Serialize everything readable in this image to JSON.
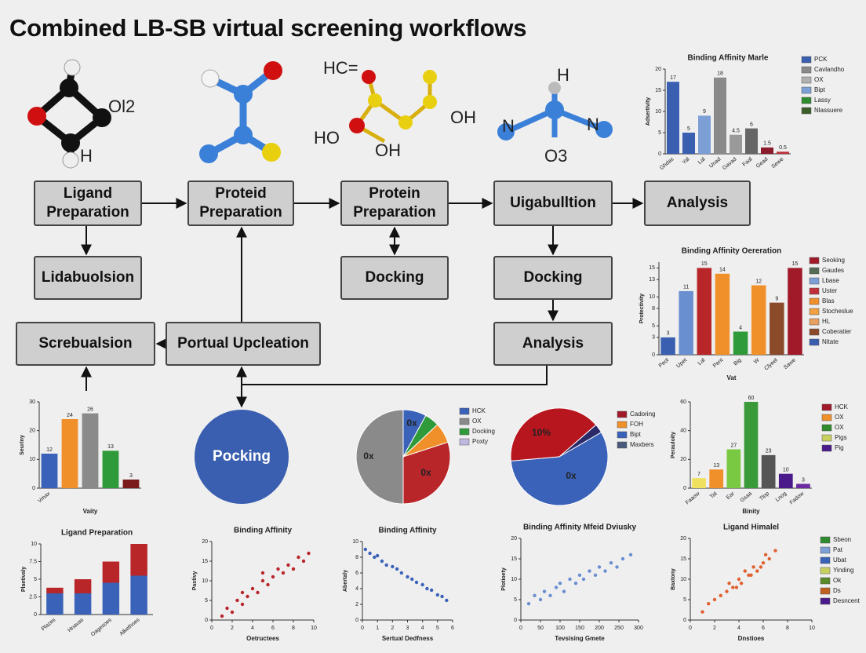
{
  "title": "Combined LB-SB virtual screening workflows",
  "nodes": [
    "Ligand Preparation",
    "Proteid Preparation",
    "Protein Preparation",
    "Uigabulltion",
    "Analysis",
    "Lidabuolsion",
    "Docking",
    "Docking",
    "Screbualsion",
    "Portual Upcleation",
    "Analysis",
    "Pocking"
  ],
  "atom_labels": [
    "Ol2",
    "H",
    "HC=",
    "HO",
    "OH",
    "OH",
    "H",
    "N",
    "N",
    "O3"
  ],
  "charts": [
    {
      "type": "bar",
      "title": "Binding Affinity Marle",
      "ylabel": "Adsertivity",
      "categories": [
        "Ghdas",
        "Yal",
        "Lal",
        "Unad",
        "Gavad",
        "Faal",
        "Gead",
        "Sewe"
      ],
      "values": [
        17,
        5,
        9,
        18,
        4.5,
        6,
        1.5,
        0.5
      ],
      "colors": [
        "#3a5fb0",
        "#3a5fb0",
        "#7c9fd6",
        "#8a8a8a",
        "#9a9a9a",
        "#666666",
        "#8b1a2a",
        "#c0303a"
      ],
      "show_values": true,
      "ylim": [
        0,
        20
      ],
      "yticks": [
        0,
        5,
        10,
        15,
        20
      ],
      "legend": [
        {
          "name": "PCK",
          "color": "#3a5fb0"
        },
        {
          "name": "Cavlandho",
          "color": "#8a8a8a"
        },
        {
          "name": "OX",
          "color": "#b0b0b0"
        },
        {
          "name": "Bipt",
          "color": "#7c9fd6"
        },
        {
          "name": "Lassy",
          "color": "#2e8b2e"
        },
        {
          "name": "Nlassuere",
          "color": "#3b5e2b"
        }
      ]
    },
    {
      "type": "bar",
      "title": "Binding Affinity Oereration",
      "ylabel": "Protectivity",
      "xlabel": "Vat",
      "categories": [
        "Peol",
        "Upet",
        "Lal",
        "Pent",
        "Big",
        "W",
        "Clyeel",
        "Sawe"
      ],
      "values": [
        3,
        11,
        15,
        14,
        4,
        12,
        9,
        15
      ],
      "colors": [
        "#3a5fb0",
        "#6a8fd0",
        "#b8262a",
        "#f0902a",
        "#2e9a3a",
        "#f0902a",
        "#8b4a2a",
        "#a01a2a"
      ],
      "show_values": true,
      "ylim": [
        0,
        16
      ],
      "yticks": [
        0,
        3,
        5,
        8,
        10,
        13,
        15
      ],
      "legend": [
        {
          "name": "Seoking",
          "color": "#a01a2a"
        },
        {
          "name": "Gaudes",
          "color": "#556b55"
        },
        {
          "name": "Lbase",
          "color": "#7c9fd6"
        },
        {
          "name": "Uster",
          "color": "#c0303a"
        },
        {
          "name": "Blas",
          "color": "#f0902a"
        },
        {
          "name": "Stocheslue",
          "color": "#f0a040"
        },
        {
          "name": "HL",
          "color": "#e8a060"
        },
        {
          "name": "Coberatier",
          "color": "#8b4a2a"
        },
        {
          "name": "Nitate",
          "color": "#3a5fb0"
        }
      ]
    },
    {
      "type": "bar",
      "ylabel": "Seuriny",
      "xlabel": "Vaity",
      "categories": [
        "Vmax",
        null,
        null,
        null,
        null
      ],
      "values": [
        12,
        24,
        26,
        13,
        3
      ],
      "colors": [
        "#3a62b8",
        "#f0902a",
        "#8a8a8a",
        "#2e9a3a",
        "#7a1a1a"
      ],
      "show_values": true,
      "ylim": [
        0,
        30
      ],
      "yticks": [
        0,
        10,
        20,
        30
      ]
    },
    {
      "type": "pie",
      "values": [
        8,
        5,
        7,
        30,
        50
      ],
      "colors": [
        "#3a62b8",
        "#2e9a3a",
        "#f0902a",
        "#b8262a",
        "#8a8a8a"
      ],
      "annotations": [
        "0x",
        "0x",
        "0x"
      ],
      "legend": [
        {
          "name": "HCK",
          "color": "#3a62b8"
        },
        {
          "name": "OX",
          "color": "#8a8a8a"
        },
        {
          "name": "Docking",
          "color": "#2e9a3a"
        },
        {
          "name": "Poxty",
          "color": "#c0b8e0"
        }
      ]
    },
    {
      "type": "pie",
      "values": [
        40,
        3,
        57
      ],
      "colors": [
        "#b8161e",
        "#2a2a6a",
        "#3a62b8"
      ],
      "annotations": [
        "10%",
        "0x"
      ],
      "legend": [
        {
          "name": "Cadoring",
          "color": "#a01a2a"
        },
        {
          "name": "FOH",
          "color": "#f0902a"
        },
        {
          "name": "Bipt",
          "color": "#3a62b8"
        },
        {
          "name": "Maxbers",
          "color": "#4a5a7a"
        }
      ]
    },
    {
      "type": "bar",
      "ylabel": "Perauloity",
      "xlabel": "Binity",
      "categories": [
        "Faaow",
        "Tat",
        "Ear",
        "Gsaa",
        "Tlop",
        "Lnog",
        "Fadow"
      ],
      "values": [
        7,
        13,
        27,
        60,
        23,
        10,
        3
      ],
      "colors": [
        "#f0e060",
        "#f0902a",
        "#7ac943",
        "#3a9a3a",
        "#555555",
        "#4b1a8a",
        "#6a2aa0"
      ],
      "show_values": true,
      "ylim": [
        0,
        60
      ],
      "yticks": [
        0,
        20,
        40,
        60
      ],
      "legend": [
        {
          "name": "HCK",
          "color": "#a01a2a"
        },
        {
          "name": "OX",
          "color": "#f0902a"
        },
        {
          "name": "OX",
          "color": "#2e8b2e"
        },
        {
          "name": "Pigs",
          "color": "#c8d060"
        },
        {
          "name": "Pig",
          "color": "#4b1a8a"
        }
      ]
    },
    {
      "type": "stacked_bar",
      "title": "Ligand Preparation",
      "ylabel": "Plaetivaly",
      "categories": [
        "Plazes",
        "Hnavas",
        "Oagesoes",
        "Alkethnes"
      ],
      "series": [
        {
          "color": "#3a62b8",
          "values": [
            3,
            3,
            4.5,
            5.5
          ]
        },
        {
          "color": "#b8262a",
          "values": [
            0.8,
            2,
            3,
            4.5
          ]
        }
      ],
      "ylim": [
        0,
        10
      ],
      "yticks": [
        0,
        2.5,
        5,
        7.5,
        10
      ]
    },
    {
      "type": "scatter",
      "title": "Binding Affinity",
      "xlabel": "Oetructees",
      "ylabel": "Pastivy",
      "color": "#b8262a",
      "x": [
        1,
        1.5,
        2,
        2.5,
        3,
        3,
        3.5,
        4,
        4.5,
        5,
        5,
        5.5,
        6,
        6.5,
        7,
        7.5,
        8,
        8.5,
        9,
        9.5
      ],
      "y": [
        1,
        3,
        2,
        5,
        4,
        7,
        6,
        8,
        7,
        10,
        12,
        9,
        11,
        13,
        12,
        14,
        13,
        16,
        15,
        17
      ],
      "xlim": [
        0,
        10
      ],
      "xticks": [
        0,
        2,
        4,
        6,
        8,
        10
      ],
      "ylim": [
        0,
        20
      ],
      "yticks": [
        0,
        5,
        10,
        15,
        20
      ]
    },
    {
      "type": "scatter",
      "title": "Binding Affinity",
      "xlabel": "Sertual Dedfness",
      "ylabel": "Abertaly",
      "color": "#3a62b8",
      "x": [
        0.2,
        0.5,
        0.8,
        1,
        1.3,
        1.6,
        2,
        2.3,
        2.6,
        3,
        3.3,
        3.6,
        4,
        4.3,
        4.6,
        5,
        5.3,
        5.6
      ],
      "y": [
        9,
        8.5,
        8,
        8.2,
        7.5,
        7,
        6.8,
        6.5,
        6,
        5.5,
        5.2,
        4.8,
        4.5,
        4,
        3.8,
        3.2,
        3,
        2.5
      ],
      "xlim": [
        0,
        6
      ],
      "xticks": [
        0,
        1,
        2,
        3,
        4,
        5,
        6
      ],
      "ylim": [
        0,
        10
      ],
      "yticks": [
        0,
        2,
        4,
        6,
        8,
        10
      ]
    },
    {
      "type": "scatter",
      "title": "Binding Affinity Mfeid Dviusky",
      "xlabel": "Tevsising Gmete",
      "ylabel": "Plotioety",
      "color": "#6a8fd0",
      "x": [
        20,
        35,
        50,
        60,
        75,
        90,
        100,
        110,
        125,
        140,
        150,
        160,
        175,
        190,
        200,
        215,
        230,
        245,
        260,
        280
      ],
      "y": [
        4,
        6,
        5,
        7,
        6,
        8,
        9,
        7,
        10,
        9,
        11,
        10,
        12,
        11,
        13,
        12,
        14,
        13,
        15,
        16
      ],
      "xlim": [
        0,
        300
      ],
      "xticks": [
        0,
        50,
        100,
        150,
        200,
        250,
        300
      ],
      "ylim": [
        0,
        20
      ],
      "yticks": [
        0,
        5,
        10,
        15,
        20
      ]
    },
    {
      "type": "scatter",
      "title": "Ligand Himalel",
      "xlabel": "Dnstioes",
      "ylabel": "Baxtony",
      "color": "#e06030",
      "x": [
        1,
        1.5,
        2,
        2.5,
        3,
        3.2,
        3.5,
        4,
        4.2,
        4.5,
        5,
        5.2,
        5.5,
        6,
        6.2,
        6.5,
        7,
        3.8,
        4.8,
        5.8
      ],
      "y": [
        2,
        4,
        5,
        6,
        7,
        9,
        8,
        10,
        9,
        12,
        11,
        13,
        12,
        14,
        16,
        15,
        17,
        8,
        11,
        13
      ],
      "xlim": [
        0,
        10
      ],
      "xticks": [
        0,
        2,
        4,
        6,
        8,
        10
      ],
      "ylim": [
        0,
        20
      ],
      "yticks": [
        0,
        5,
        10,
        15,
        20
      ],
      "legend": [
        {
          "name": "Sbeon",
          "color": "#2e8b2e"
        },
        {
          "name": "Pat",
          "color": "#7c9fd6"
        },
        {
          "name": "Ubat",
          "color": "#3a62b8"
        },
        {
          "name": "Yinding",
          "color": "#c8d060"
        },
        {
          "name": "Ok",
          "color": "#5a8a2a"
        },
        {
          "name": "Ds",
          "color": "#c06020"
        },
        {
          "name": "Desncent",
          "color": "#4b1a8a"
        }
      ]
    }
  ]
}
